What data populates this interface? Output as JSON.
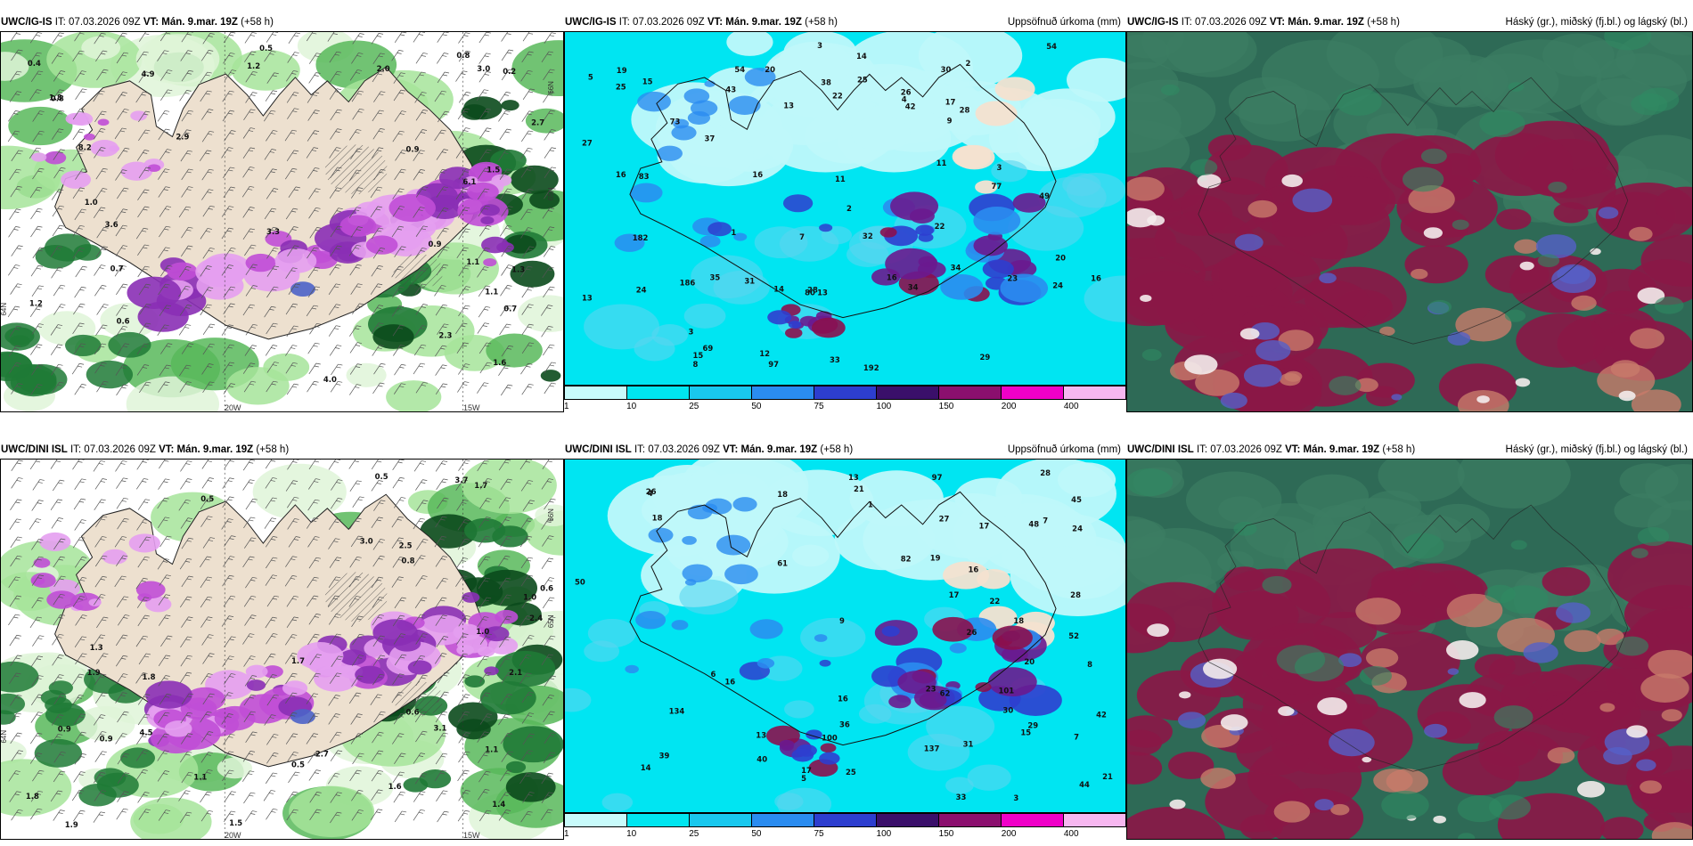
{
  "rows": [
    {
      "model": "UWC/IG-IS",
      "panels": [
        {
          "it_label": "IT:",
          "it": "07.03.2026 09Z",
          "vt_label": "VT:",
          "vt": "Mán. 9.mar. 19Z",
          "lead": "(+58 h)",
          "right_title": "",
          "axis": {
            "lon1": "20W",
            "lon2": "15W",
            "lat1": "64N",
            "lat2": "65N",
            "lat3": "66N"
          },
          "values": [
            "0.9",
            "1.1",
            "0.7",
            "0.5",
            "1.0",
            "0.6",
            "0.8",
            "1.2",
            "2.9",
            "3.0",
            "1.6",
            "6.1",
            "4.9",
            "8.2",
            "3.6",
            "3.3",
            "2.7",
            "4.0",
            "0.7",
            "0.8",
            "1.2",
            "0.2",
            "0.4",
            "1.8",
            "2.3",
            "1.1",
            "0.9",
            "1.5",
            "2.0",
            "1.3"
          ]
        },
        {
          "it_label": "IT:",
          "it": "07.03.2026 09Z",
          "vt_label": "VT:",
          "vt": "Mán. 9.mar. 19Z",
          "lead": "(+58 h)",
          "right_title": "Uppsöfnuð úrkoma (mm)",
          "values": [
            "16",
            "15",
            "14",
            "11",
            "16",
            "13",
            "19",
            "33",
            "34",
            "28",
            "29",
            "26",
            "24",
            "35",
            "2",
            "3",
            "1",
            "2",
            "3",
            "3",
            "4",
            "8",
            "12",
            "22",
            "7",
            "5",
            "11",
            "13",
            "16",
            "25",
            "38",
            "20",
            "14",
            "16",
            "22",
            "32",
            "37",
            "49",
            "97",
            "42",
            "43",
            "73",
            "80",
            "69",
            "31",
            "27",
            "25",
            "24",
            "17",
            "15",
            "20",
            "23",
            "28",
            "13",
            "9",
            "186",
            "77",
            "30",
            "54",
            "192",
            "182",
            "83",
            "34",
            "54"
          ]
        },
        {
          "it_label": "IT:",
          "it": "07.03.2026 09Z",
          "vt_label": "VT:",
          "vt": "Mán. 9.mar. 19Z",
          "lead": "(+58 h)",
          "right_title": "Háský (gr.), miðský (fj.bl.) og lágský (bl.)",
          "values": []
        }
      ]
    },
    {
      "model": "UWC/DINI ISL",
      "panels": [
        {
          "it_label": "IT:",
          "it": "07.03.2026 09Z",
          "vt_label": "VT:",
          "vt": "Mán. 9.mar. 19Z",
          "lead": "(+58 h)",
          "right_title": "",
          "axis": {
            "lon1": "20W",
            "lon2": "15W",
            "lat1": "64N",
            "lat2": "65N",
            "lat3": "66N"
          },
          "values": [
            "1.3",
            "0.6",
            "0.5",
            "1.7",
            "3.0",
            "1.0",
            "1.6",
            "0.5",
            "1.8",
            "2.4",
            "2.1",
            "3.7",
            "1.8",
            "4.5",
            "1.9",
            "0.9",
            "0.6",
            "1.1",
            "0.8",
            "3.1",
            "1.4",
            "0.9",
            "2.5",
            "1.9",
            "1.7",
            "1.0",
            "0.5",
            "1.5",
            "2.7",
            "1.1"
          ]
        },
        {
          "it_label": "IT:",
          "it": "07.03.2026 09Z",
          "vt_label": "VT:",
          "vt": "Mán. 9.mar. 19Z",
          "lead": "(+58 h)",
          "right_title": "Uppsöfnuð úrkoma (mm)",
          "values": [
            "15",
            "16",
            "17",
            "18",
            "13",
            "21",
            "19",
            "24",
            "22",
            "26",
            "29",
            "30",
            "27",
            "17",
            "28",
            "20",
            "21",
            "16",
            "1",
            "7",
            "3",
            "4",
            "5",
            "6",
            "7",
            "8",
            "14",
            "16",
            "18",
            "17",
            "25",
            "40",
            "36",
            "44",
            "48",
            "97",
            "45",
            "62",
            "82",
            "101",
            "134",
            "137",
            "28",
            "23",
            "26",
            "9",
            "100",
            "61",
            "50",
            "52",
            "31",
            "33",
            "18",
            "13",
            "42",
            "39"
          ]
        },
        {
          "it_label": "IT:",
          "it": "07.03.2026 09Z",
          "vt_label": "VT:",
          "vt": "Mán. 9.mar. 19Z",
          "lead": "(+58 h)",
          "right_title": "Háský (gr.), miðský (fj.bl.) og lágský (bl.)",
          "values": []
        }
      ]
    }
  ],
  "colorbar": {
    "ticks": [
      "1",
      "10",
      "25",
      "50",
      "75",
      "100",
      "150",
      "200",
      "400"
    ],
    "colors": [
      "#c8fbfb",
      "#00e6f0",
      "#19c8ee",
      "#2a8cf0",
      "#2d3ecf",
      "#3a0f6a",
      "#8b0f6e",
      "#f000c8",
      "#f7b7f0"
    ]
  }
}
